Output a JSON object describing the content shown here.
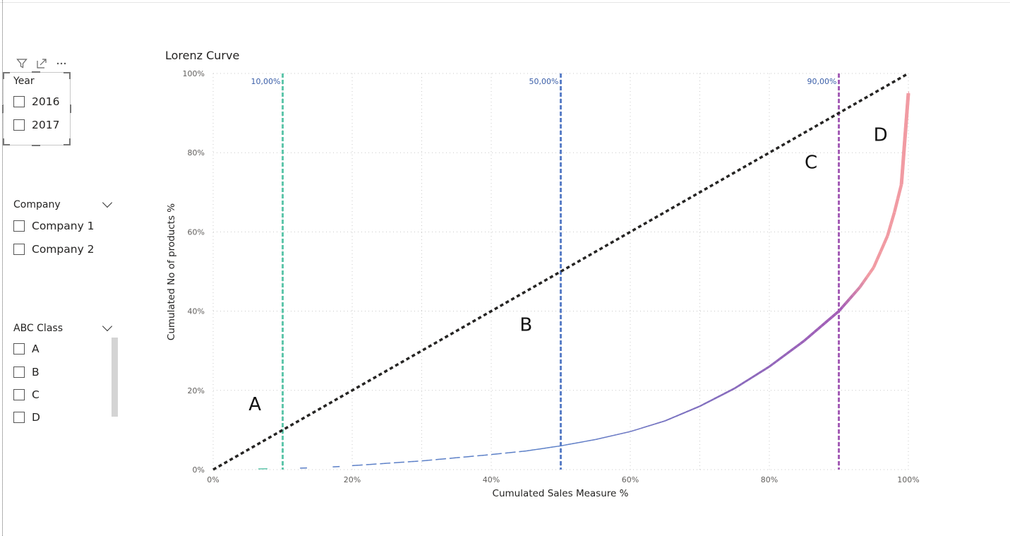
{
  "slicers": {
    "year": {
      "title": "Year",
      "items": [
        {
          "label": "2016"
        },
        {
          "label": "2017"
        }
      ]
    },
    "company": {
      "title": "Company",
      "items": [
        {
          "label": "Company 1"
        },
        {
          "label": "Company 2"
        }
      ]
    },
    "abc": {
      "title": "ABC Class",
      "items": [
        {
          "label": "A"
        },
        {
          "label": "B"
        },
        {
          "label": "C"
        },
        {
          "label": "D"
        }
      ]
    }
  },
  "chart_data": {
    "type": "line",
    "title": "Lorenz Curve",
    "xlabel": "Cumulated Sales Measure %",
    "ylabel": "Cumulated No of products %",
    "xlim": [
      0,
      100
    ],
    "ylim": [
      0,
      100
    ],
    "x_ticks": [
      "0%",
      "20%",
      "40%",
      "60%",
      "80%",
      "100%"
    ],
    "y_ticks": [
      "0%",
      "20%",
      "40%",
      "60%",
      "80%",
      "100%"
    ],
    "grid": true,
    "equality_line": {
      "x": [
        0,
        100
      ],
      "y": [
        0,
        100
      ],
      "color": "#252423"
    },
    "reference_lines": [
      {
        "x": 10,
        "label": "10,00%",
        "color": "#5fc6ab"
      },
      {
        "x": 50,
        "label": "50,00%",
        "color": "#5b7fc7"
      },
      {
        "x": 90,
        "label": "90,00%",
        "color": "#a45db6"
      }
    ],
    "curve": {
      "x": [
        0,
        7,
        13,
        17.5,
        20,
        30,
        40,
        45,
        50,
        55,
        60,
        65,
        70,
        75,
        80,
        85,
        90,
        93,
        95,
        97,
        98,
        99,
        100
      ],
      "y": [
        0,
        0.2,
        0.4,
        0.7,
        1,
        2.2,
        3.8,
        4.7,
        6,
        7.6,
        9.6,
        12.3,
        16,
        20.5,
        26,
        32.5,
        40,
        46,
        51,
        59,
        65,
        72,
        95
      ],
      "colors": {
        "start": "#5b7fc7",
        "mid": "#a45db6",
        "end": "#f19ba3"
      }
    },
    "zone_labels": [
      {
        "text": "A",
        "x": 6,
        "y": 15
      },
      {
        "text": "B",
        "x": 45,
        "y": 35
      },
      {
        "text": "C",
        "x": 86,
        "y": 76
      },
      {
        "text": "D",
        "x": 96,
        "y": 83
      }
    ]
  }
}
